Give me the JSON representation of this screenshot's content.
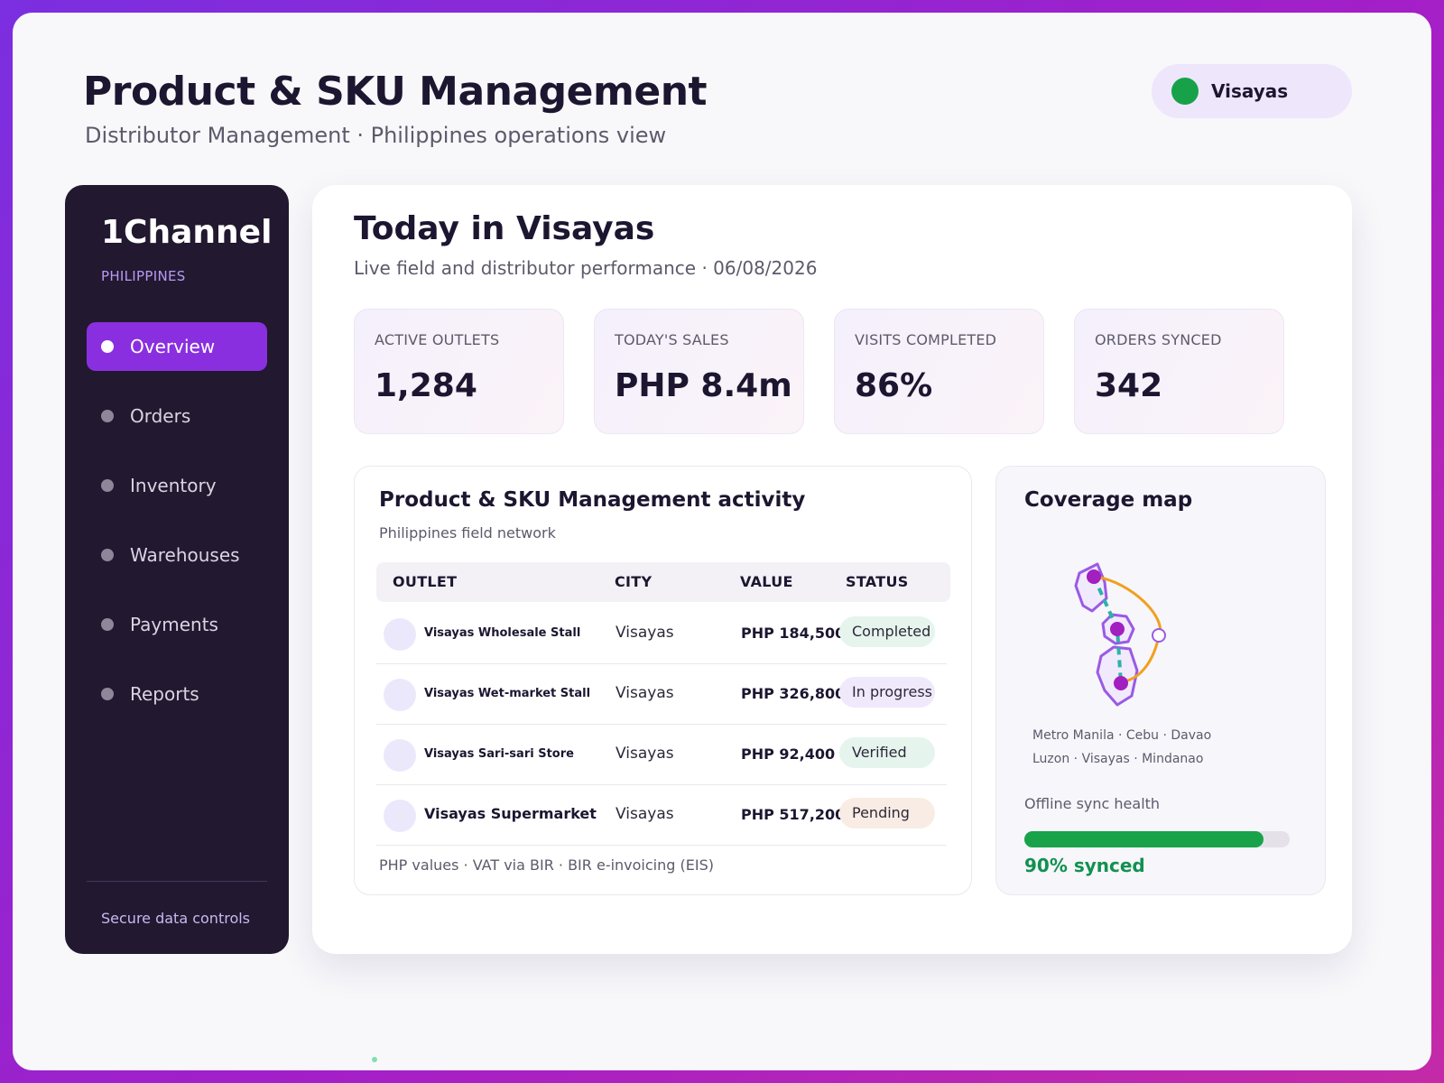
{
  "header": {
    "title": "Product & SKU Management",
    "subtitle": "Distributor Management · Philippines operations view",
    "region": "Visayas"
  },
  "sidebar": {
    "brand": "1Channel",
    "country": "PHILIPPINES",
    "items": [
      {
        "label": "Overview",
        "active": true
      },
      {
        "label": "Orders"
      },
      {
        "label": "Inventory"
      },
      {
        "label": "Warehouses"
      },
      {
        "label": "Payments"
      },
      {
        "label": "Reports"
      }
    ],
    "footer_link": "Secure data controls"
  },
  "main": {
    "title": "Today in Visayas",
    "subtitle": "Live field and distributor performance · 06/08/2026",
    "kpis": [
      {
        "label": "ACTIVE OUTLETS",
        "value": "1,284"
      },
      {
        "label": "TODAY'S SALES",
        "value": "PHP 8.4m"
      },
      {
        "label": "VISITS COMPLETED",
        "value": "86%"
      },
      {
        "label": "ORDERS SYNCED",
        "value": "342"
      }
    ]
  },
  "activity": {
    "title": "Product & SKU Management activity",
    "subtitle": "Philippines field network",
    "columns": [
      "OUTLET",
      "CITY",
      "VALUE",
      "STATUS"
    ],
    "rows": [
      {
        "outlet": "Visayas Wholesale Stall",
        "city": "Visayas",
        "value": "PHP 184,500",
        "status": "Completed"
      },
      {
        "outlet": "Visayas Wet-market Stall",
        "city": "Visayas",
        "value": "PHP 326,800",
        "status": "In progress"
      },
      {
        "outlet": "Visayas Sari-sari Store",
        "city": "Visayas",
        "value": "PHP 92,400",
        "status": "Verified"
      },
      {
        "outlet": "Visayas Supermarket",
        "city": "Visayas",
        "value": "PHP 517,200",
        "status": "Pending"
      }
    ],
    "footer": "PHP values · VAT via BIR · BIR e-invoicing (EIS)"
  },
  "coverage": {
    "title": "Coverage map",
    "cities": "Metro Manila · Cebu · Davao",
    "regions": "Luzon · Visayas · Mindanao",
    "sync_label": "Offline sync health",
    "sync_fraction": 0.9,
    "sync_value": "90% synced"
  },
  "colors": {
    "accent": "#8a2fe0",
    "sidebar_bg": "#221830",
    "success": "#18a34a",
    "status_active_dot": "#17a24a",
    "map_route": "#2bb3a8",
    "map_arc": "#f0a020",
    "map_node": "#a21fc0"
  }
}
